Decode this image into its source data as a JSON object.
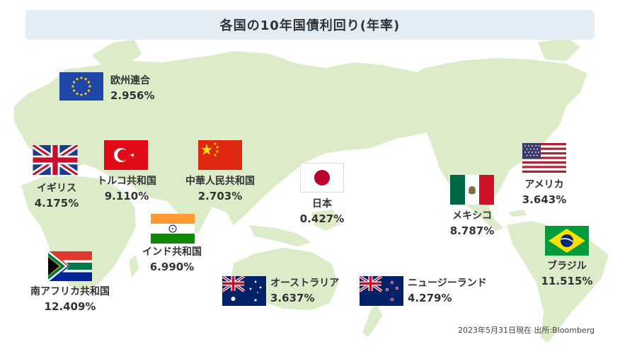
{
  "title": "各国の10年国債利回り(年率)",
  "footer": "2023年5月31日現在 出所:Bloomberg",
  "colors": {
    "land": "#dcecc8",
    "title_bg": "#e3edf6",
    "text": "#333333"
  },
  "countries": {
    "eu": {
      "name": "欧州連合",
      "value": "2.956%",
      "flag": "eu-flag-icon"
    },
    "uk": {
      "name": "イギリス",
      "value": "4.175%",
      "flag": "uk-flag-icon"
    },
    "turkey": {
      "name": "トルコ共和国",
      "value": "9.110%",
      "flag": "turkey-flag-icon"
    },
    "china": {
      "name": "中華人民共和国",
      "value": "2.703%",
      "flag": "china-flag-icon"
    },
    "japan": {
      "name": "日本",
      "value": "0.427%",
      "flag": "japan-flag-icon"
    },
    "mexico": {
      "name": "メキシコ",
      "value": "8.787%",
      "flag": "mexico-flag-icon"
    },
    "usa": {
      "name": "アメリカ",
      "value": "3.643%",
      "flag": "usa-flag-icon"
    },
    "india": {
      "name": "インド共和国",
      "value": "6.990%",
      "flag": "india-flag-icon"
    },
    "south_africa": {
      "name": "南アフリカ共和国",
      "value": "12.409%",
      "flag": "south-africa-flag-icon"
    },
    "australia": {
      "name": "オーストラリア",
      "value": "3.637%",
      "flag": "australia-flag-icon"
    },
    "new_zealand": {
      "name": "ニュージーランド",
      "value": "4.279%",
      "flag": "new-zealand-flag-icon"
    },
    "brazil": {
      "name": "ブラジル",
      "value": "11.515%",
      "flag": "brazil-flag-icon"
    }
  }
}
